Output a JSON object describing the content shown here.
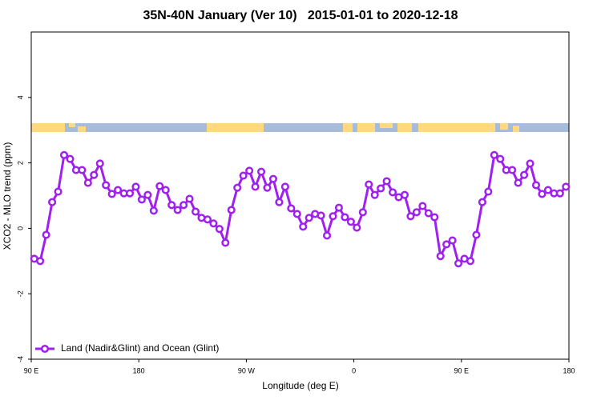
{
  "chart_data": {
    "type": "line",
    "title": "35N-40N January (Ver 10)   2015-01-01 to 2020-12-18",
    "x_label": "Longitude (deg E)",
    "y_label": "XCO2 - MLO trend (ppm)",
    "xlim": [
      90,
      540
    ],
    "ylim": [
      -4,
      6
    ],
    "xticks": [
      {
        "value": 90,
        "label": "90 E"
      },
      180,
      {
        "value": 270,
        "label": "90 W"
      },
      {
        "value": 360,
        "label": "0"
      },
      {
        "value": 450,
        "label": "90 E"
      },
      {
        "value": 540,
        "label": "180"
      }
    ],
    "yticks": [
      -4,
      -2,
      0,
      2,
      4
    ],
    "legend": "bottom-left",
    "x": [
      92.5,
      97.5,
      102.5,
      107.5,
      112.5,
      117.5,
      122.5,
      127.5,
      132.5,
      137.5,
      142.5,
      147.5,
      152.5,
      157.5,
      162.5,
      167.5,
      172.5,
      177.5,
      182.5,
      187.5,
      192.5,
      197.5,
      202.5,
      207.5,
      212.5,
      217.5,
      222.5,
      227.5,
      232.5,
      237.5,
      242.5,
      247.5,
      252.5,
      257.5,
      262.5,
      267.5,
      272.5,
      277.5,
      282.5,
      287.5,
      292.5,
      297.5,
      302.5,
      307.5,
      312.5,
      317.5,
      322.5,
      327.5,
      332.5,
      337.5,
      342.5,
      347.5,
      352.5,
      357.5,
      362.5,
      367.5,
      372.5,
      377.5,
      382.5,
      387.5,
      392.5,
      397.5,
      402.5,
      407.5,
      412.5,
      417.5,
      422.5,
      427.5,
      432.5,
      437.5,
      442.5,
      447.5,
      452.5,
      457.5,
      462.5,
      467.5,
      472.5,
      477.5,
      482.5,
      487.5,
      492.5,
      497.5,
      502.5,
      507.5,
      512.5,
      517.5,
      522.5,
      527.5,
      532.5,
      537.5
    ],
    "series": [
      {
        "name": "Land (Nadir&Glint) and Ocean (Glint)",
        "color": "#a020f0",
        "values": [
          -0.93,
          -1.0,
          -0.2,
          0.8,
          1.12,
          2.24,
          2.12,
          1.78,
          1.78,
          1.39,
          1.63,
          1.98,
          1.32,
          1.05,
          1.17,
          1.07,
          1.07,
          1.27,
          0.88,
          1.02,
          0.54,
          1.29,
          1.17,
          0.71,
          0.56,
          0.71,
          0.9,
          0.51,
          0.32,
          0.27,
          0.15,
          -0.02,
          -0.44,
          0.56,
          1.24,
          1.61,
          1.76,
          1.27,
          1.73,
          1.24,
          1.51,
          0.8,
          1.27,
          0.61,
          0.44,
          0.05,
          0.32,
          0.44,
          0.39,
          -0.22,
          0.37,
          0.63,
          0.34,
          0.2,
          0.02,
          0.49,
          1.34,
          1.02,
          1.22,
          1.44,
          1.1,
          0.95,
          1.02,
          0.37,
          0.49,
          0.68,
          0.46,
          0.34,
          -0.85,
          -0.49,
          -0.37,
          -1.07,
          -0.93,
          -1.0,
          -0.2,
          0.8,
          1.12,
          2.24,
          2.12,
          1.78,
          1.78,
          1.39,
          1.63,
          1.98,
          1.32,
          1.05,
          1.17,
          1.07,
          1.07,
          1.27
        ]
      }
    ]
  }
}
